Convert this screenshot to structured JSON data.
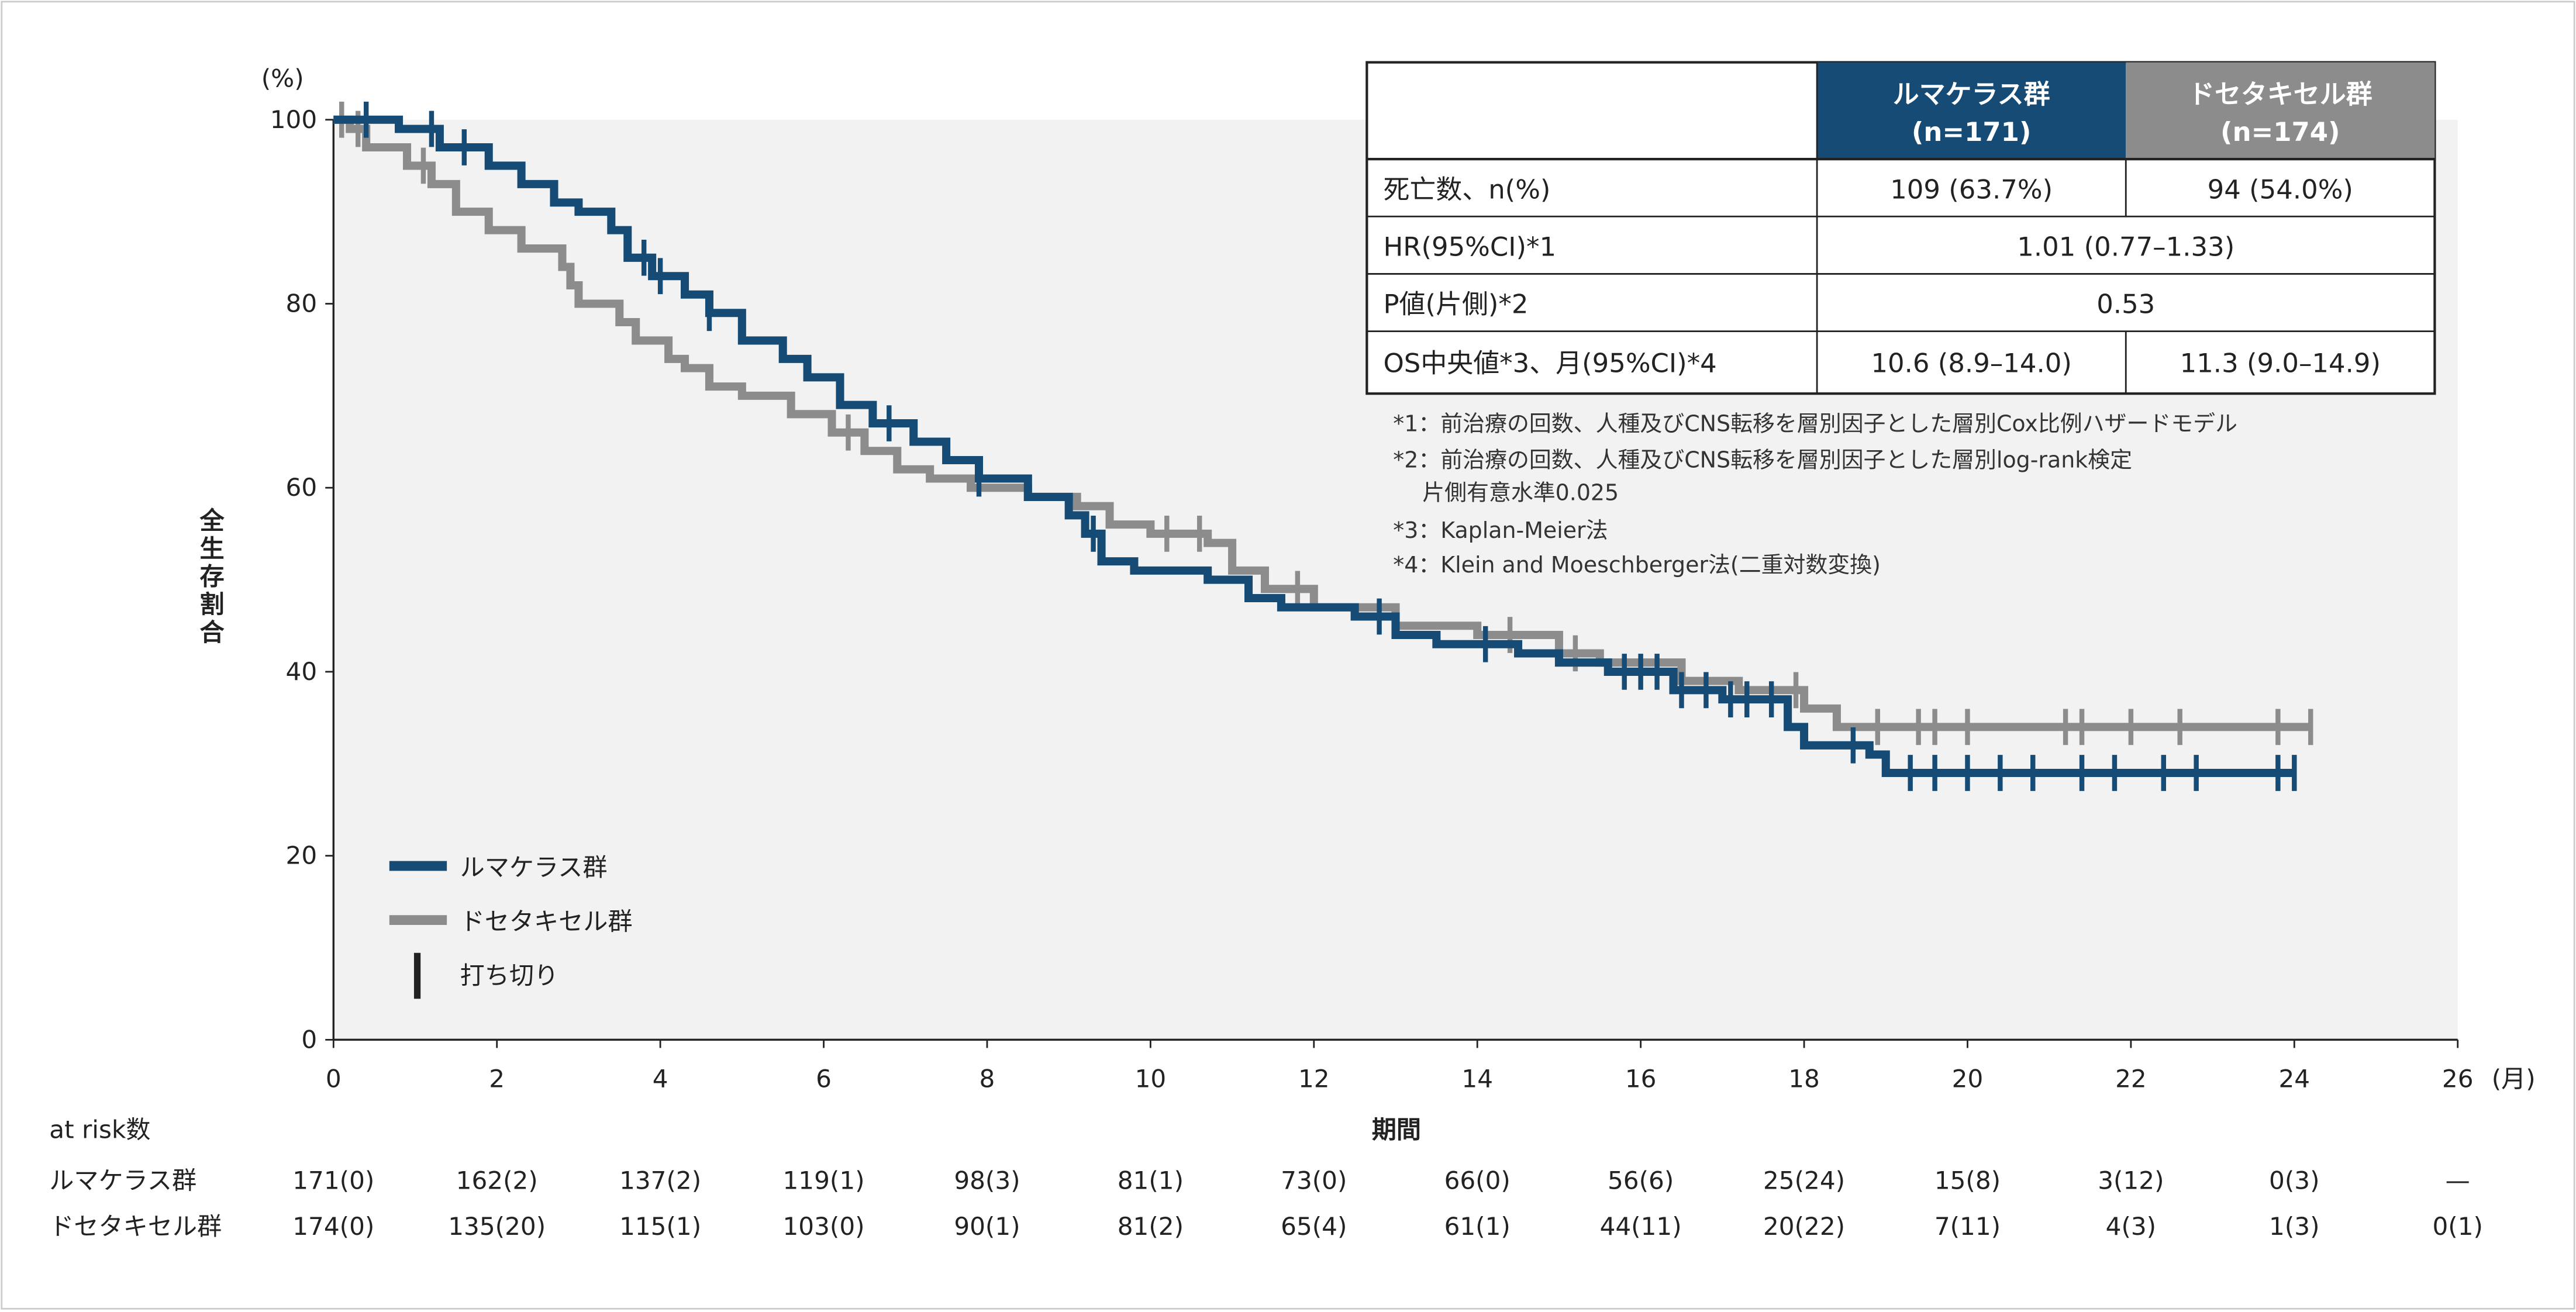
{
  "chart_data": {
    "type": "line",
    "subtype": "kaplan-meier",
    "xlabel": "期間",
    "x_unit": "(月)",
    "ylabel": "全生存割合",
    "y_unit": "(%)",
    "xlim": [
      0,
      26
    ],
    "ylim": [
      0,
      100
    ],
    "xticks": [
      0,
      2,
      4,
      6,
      8,
      10,
      12,
      14,
      16,
      18,
      20,
      22,
      24,
      26
    ],
    "yticks": [
      0,
      20,
      40,
      60,
      80,
      100
    ],
    "grid": false,
    "legend_placement": "bottom-left",
    "series": [
      {
        "name": "ルマケラス群",
        "color": "#154b75",
        "steps": [
          [
            0,
            100
          ],
          [
            0.8,
            99
          ],
          [
            1.3,
            97
          ],
          [
            1.9,
            95
          ],
          [
            2.3,
            93
          ],
          [
            2.7,
            91
          ],
          [
            3.0,
            90
          ],
          [
            3.4,
            88
          ],
          [
            3.6,
            85
          ],
          [
            3.9,
            83
          ],
          [
            4.3,
            81
          ],
          [
            4.6,
            79
          ],
          [
            5.0,
            76
          ],
          [
            5.5,
            74
          ],
          [
            5.8,
            72
          ],
          [
            6.2,
            69
          ],
          [
            6.6,
            67
          ],
          [
            7.1,
            65
          ],
          [
            7.5,
            63
          ],
          [
            7.9,
            61
          ],
          [
            8.5,
            59
          ],
          [
            9.0,
            57
          ],
          [
            9.2,
            55
          ],
          [
            9.4,
            52
          ],
          [
            9.8,
            51
          ],
          [
            10.7,
            50
          ],
          [
            11.2,
            48
          ],
          [
            11.6,
            47
          ],
          [
            12.5,
            46
          ],
          [
            13.0,
            44
          ],
          [
            13.5,
            43
          ],
          [
            14.5,
            42
          ],
          [
            15.0,
            41
          ],
          [
            15.6,
            40
          ],
          [
            16.4,
            38
          ],
          [
            17.0,
            37
          ],
          [
            17.8,
            34
          ],
          [
            18.0,
            32
          ],
          [
            18.8,
            31
          ],
          [
            19.0,
            29
          ],
          [
            24.0,
            29
          ]
        ],
        "censored": [
          0.4,
          1.2,
          1.6,
          3.8,
          4.0,
          4.6,
          6.8,
          7.9,
          9.3,
          12.8,
          14.1,
          15.8,
          16.0,
          16.2,
          16.5,
          16.8,
          17.1,
          17.3,
          17.6,
          18.6,
          19.3,
          19.6,
          20.0,
          20.4,
          20.8,
          21.4,
          21.8,
          22.4,
          22.8,
          23.8,
          24.0
        ]
      },
      {
        "name": "ドセタキセル群",
        "color": "#8c8c8c",
        "steps": [
          [
            0,
            100
          ],
          [
            0.2,
            99
          ],
          [
            0.4,
            97
          ],
          [
            0.9,
            95
          ],
          [
            1.2,
            93
          ],
          [
            1.5,
            90
          ],
          [
            1.9,
            88
          ],
          [
            2.3,
            86
          ],
          [
            2.8,
            84
          ],
          [
            2.9,
            82
          ],
          [
            3.0,
            80
          ],
          [
            3.5,
            78
          ],
          [
            3.7,
            76
          ],
          [
            4.1,
            74
          ],
          [
            4.3,
            73
          ],
          [
            4.6,
            71
          ],
          [
            5.0,
            70
          ],
          [
            5.6,
            68
          ],
          [
            6.1,
            66
          ],
          [
            6.5,
            64
          ],
          [
            6.9,
            62
          ],
          [
            7.3,
            61
          ],
          [
            7.8,
            60
          ],
          [
            8.5,
            59
          ],
          [
            9.1,
            58
          ],
          [
            9.5,
            56
          ],
          [
            10.0,
            55
          ],
          [
            10.7,
            54
          ],
          [
            11.0,
            51
          ],
          [
            11.4,
            49
          ],
          [
            12.0,
            47
          ],
          [
            13.0,
            45
          ],
          [
            14.0,
            44
          ],
          [
            15.0,
            42
          ],
          [
            15.5,
            41
          ],
          [
            16.5,
            39
          ],
          [
            17.2,
            38
          ],
          [
            18.0,
            36
          ],
          [
            18.4,
            34
          ],
          [
            24.2,
            34
          ]
        ],
        "censored": [
          0.1,
          0.3,
          1.1,
          6.3,
          10.2,
          10.6,
          11.8,
          14.4,
          15.2,
          17.9,
          18.9,
          19.4,
          19.6,
          20.0,
          21.2,
          21.4,
          22.0,
          22.6,
          23.8,
          24.2
        ]
      }
    ],
    "legend": {
      "items": [
        "ルマケラス群",
        "ドセタキセル群",
        "打ち切り"
      ],
      "censor_color": "#222222"
    },
    "summary_table": {
      "columns": [
        {
          "label": "ルマケラス群",
          "n": "(n=171)",
          "color": "#154b75"
        },
        {
          "label": "ドセタキセル群",
          "n": "(n=174)",
          "color": "#8c8c8c"
        }
      ],
      "rows": [
        {
          "label": "死亡数、n(%)",
          "values": [
            "109 (63.7%)",
            "94 (54.0%)"
          ]
        },
        {
          "label": "HR(95%CI)*1",
          "values": [
            "1.01 (0.77–1.33)"
          ]
        },
        {
          "label": "P値(片側)*2",
          "values": [
            "0.53"
          ]
        },
        {
          "label": "OS中央値*3、月(95%CI)*4",
          "values": [
            "10.6 (8.9–14.0)",
            "11.3 (9.0–14.9)"
          ]
        }
      ]
    },
    "footnotes": [
      "*1：前治療の回数、人種及びCNS転移を層別因子とした層別Cox比例ハザードモデル",
      "*2：前治療の回数、人種及びCNS転移を層別因子とした層別log-rank検定",
      "　 片側有意水準0.025",
      "*3：Kaplan-Meier法",
      "*4：Klein and Moeschberger法(二重対数変換)"
    ],
    "at_risk": {
      "title": "at risk数",
      "rows": [
        {
          "label": "ルマケラス群",
          "values": [
            "171(0)",
            "162(2)",
            "137(2)",
            "119(1)",
            "98(3)",
            "81(1)",
            "73(0)",
            "66(0)",
            "56(6)",
            "25(24)",
            "15(8)",
            "3(12)",
            "0(3)",
            "—"
          ]
        },
        {
          "label": "ドセタキセル群",
          "values": [
            "174(0)",
            "135(20)",
            "115(1)",
            "103(0)",
            "90(1)",
            "81(2)",
            "65(4)",
            "61(1)",
            "44(11)",
            "20(22)",
            "7(11)",
            "4(3)",
            "1(3)",
            "0(1)"
          ]
        }
      ]
    },
    "plot_bg": "#f2f2f2"
  }
}
